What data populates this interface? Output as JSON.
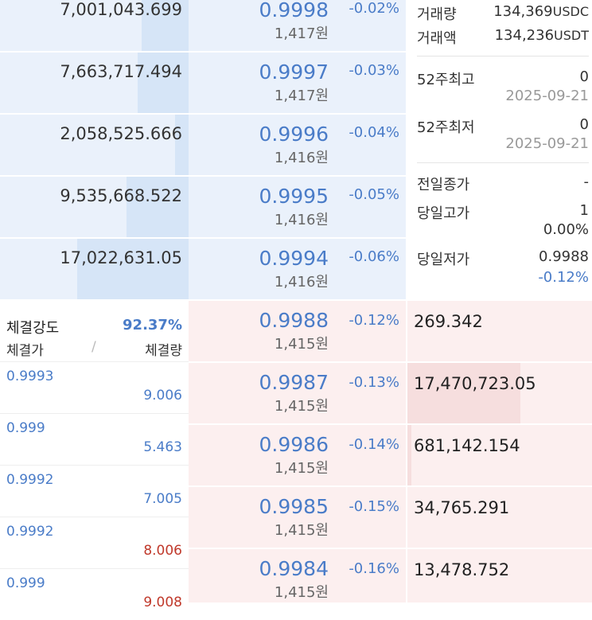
{
  "asks": [
    {
      "qty": "7,001,043.699",
      "price": "0.9998",
      "krw": "1,417원",
      "change": "-0.02%",
      "bar": 0.25
    },
    {
      "qty": "7,663,717.494",
      "price": "0.9997",
      "krw": "1,417원",
      "change": "-0.03%",
      "bar": 0.27
    },
    {
      "qty": "2,058,525.666",
      "price": "0.9996",
      "krw": "1,416원",
      "change": "-0.04%",
      "bar": 0.07
    },
    {
      "qty": "9,535,668.522",
      "price": "0.9995",
      "krw": "1,416원",
      "change": "-0.05%",
      "bar": 0.33
    },
    {
      "qty": "17,022,631.05",
      "price": "0.9994",
      "krw": "1,416원",
      "change": "-0.06%",
      "bar": 0.59
    }
  ],
  "bids": [
    {
      "qty": "269.342",
      "price": "0.9988",
      "krw": "1,415원",
      "change": "-0.12%",
      "bar": 0.0
    },
    {
      "qty": "17,470,723.05",
      "price": "0.9987",
      "krw": "1,415원",
      "change": "-0.13%",
      "bar": 0.61
    },
    {
      "qty": "681,142.154",
      "price": "0.9986",
      "krw": "1,415원",
      "change": "-0.14%",
      "bar": 0.02
    },
    {
      "qty": "34,765.291",
      "price": "0.9985",
      "krw": "1,415원",
      "change": "-0.15%",
      "bar": 0.0
    },
    {
      "qty": "13,478.752",
      "price": "0.9984",
      "krw": "1,415원",
      "change": "-0.16%",
      "bar": 0.0
    }
  ],
  "info": {
    "volume_label": "거래량",
    "volume_value": "134,369",
    "volume_unit": "USDC",
    "amount_label": "거래액",
    "amount_value": "134,236",
    "amount_unit": "USDT",
    "high52_label": "52주최고",
    "high52_value": "0",
    "high52_date": "2025-09-21",
    "low52_label": "52주최저",
    "low52_value": "0",
    "low52_date": "2025-09-21",
    "prev_close_label": "전일종가",
    "prev_close_value": "-",
    "day_high_label": "당일고가",
    "day_high_value": "1",
    "day_high_pct": "0.00%",
    "day_low_label": "당일저가",
    "day_low_value": "0.9988",
    "day_low_pct": "-0.12%"
  },
  "trades": {
    "strength_label": "체결강도",
    "strength_value": "92.37%",
    "price_header": "체결가",
    "divider": "/",
    "qty_header": "체결량",
    "rows": [
      {
        "price": "0.9993",
        "qty": "9.006",
        "side": "buy"
      },
      {
        "price": "0.999",
        "qty": "5.463",
        "side": "buy"
      },
      {
        "price": "0.9992",
        "qty": "7.005",
        "side": "buy"
      },
      {
        "price": "0.9992",
        "qty": "8.006",
        "side": "sell"
      },
      {
        "price": "0.999",
        "qty": "9.008",
        "side": "sell"
      }
    ]
  },
  "colors": {
    "ask_bg": "#eaf1fb",
    "bid_bg": "#fcefef",
    "blue": "#4a7cc8",
    "red": "#c0392b"
  }
}
